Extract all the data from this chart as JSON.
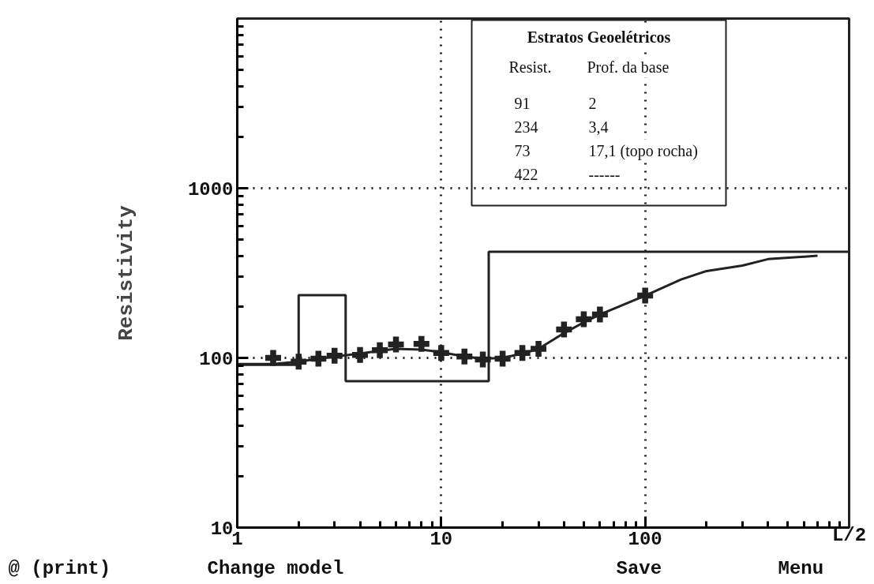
{
  "chart_data": {
    "type": "scatter",
    "ylabel": "Resistivity",
    "log": "xy",
    "grid": true,
    "marker": "none",
    "line_style": "solid",
    "xlim": [
      1,
      1000
    ],
    "ylim": [
      10,
      10000
    ],
    "xlabel": "L/2",
    "xticks": [
      1,
      10,
      100
    ],
    "yticks": [
      10,
      100,
      1000
    ],
    "series": [
      {
        "type": "step",
        "color": "#222222",
        "x": [
          1,
          2,
          3.4,
          17.1,
          1000
        ],
        "values": [
          91,
          234,
          73,
          422,
          422
        ]
      },
      {
        "type": "line",
        "color": "#222222",
        "x": [
          1,
          1.5,
          2,
          3,
          4,
          5,
          6,
          8,
          10,
          13,
          16,
          20,
          25,
          30,
          40,
          50,
          60,
          100,
          150,
          200,
          300,
          400,
          700
        ],
        "values": [
          92,
          92,
          95,
          102,
          106,
          110,
          113,
          112,
          108,
          102,
          99,
          100,
          106,
          113,
          140,
          162,
          180,
          233,
          290,
          325,
          350,
          382,
          400
        ]
      },
      {
        "marker": "cross",
        "color": "#222222",
        "x": [
          1.5,
          2,
          2.5,
          3,
          4,
          5,
          6,
          8,
          10,
          13,
          16,
          20,
          25,
          30,
          40,
          50,
          60,
          100
        ],
        "values": [
          100,
          95,
          99,
          103,
          104,
          111,
          120,
          121,
          107,
          102,
          98,
          99,
          107,
          113,
          147,
          169,
          180,
          233
        ]
      }
    ],
    "annotations": [
      "Estratos Geoelétricos",
      "Resist.",
      "Prof. da base",
      "91",
      "2",
      "234",
      "3,4",
      "73",
      "17,1 (topo rocha)",
      "422",
      "------",
      "@ (print)",
      "Change model",
      "Save",
      "Menu"
    ]
  }
}
